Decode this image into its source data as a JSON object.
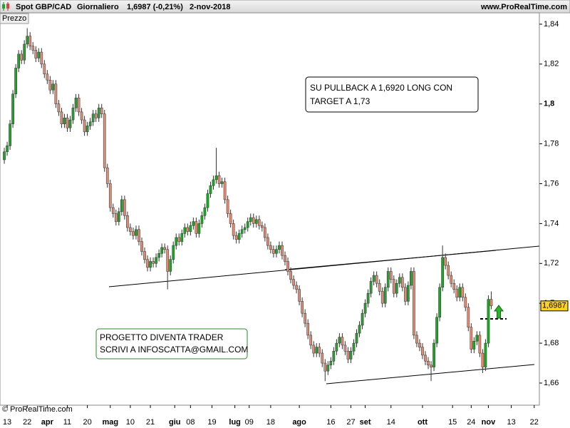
{
  "chart_data": {
    "type": "candlestick",
    "symbol": "Spot GBP/CAD",
    "period": "Giornaliero",
    "quote": "1,6987 (-0,21%)",
    "date": "2-nov-2018",
    "site": "www.ProRealTime.com",
    "pane": "Prezzo",
    "copyright": "© ProRealTime.com",
    "up_color": "#22a32a",
    "down_color": "#e08a74",
    "ylim": [
      1.6489,
      1.8457
    ],
    "yticks": [
      {
        "value": 1.84,
        "label": "1,84"
      },
      {
        "value": 1.82,
        "label": "1,82"
      },
      {
        "value": 1.8,
        "label": "1,8"
      },
      {
        "value": 1.78,
        "label": "1,78"
      },
      {
        "value": 1.76,
        "label": "1,76"
      },
      {
        "value": 1.74,
        "label": "1,74"
      },
      {
        "value": 1.72,
        "label": "1,72"
      },
      {
        "value": 1.7,
        "label": "1,7"
      },
      {
        "value": 1.68,
        "label": "1,68"
      },
      {
        "value": 1.66,
        "label": "1,66"
      }
    ],
    "xlim": [
      -1.5,
      186.8
    ],
    "xticks": [
      {
        "value": 1,
        "label": "13"
      },
      {
        "value": 8,
        "label": "22"
      },
      {
        "value": 15,
        "label": "apr"
      },
      {
        "value": 22,
        "label": "11"
      },
      {
        "value": 29,
        "label": "20"
      },
      {
        "value": 37,
        "label": "mag"
      },
      {
        "value": 44,
        "label": "10"
      },
      {
        "value": 51,
        "label": "21"
      },
      {
        "value": 59.5,
        "label": "giu"
      },
      {
        "value": 65,
        "label": "08"
      },
      {
        "value": 72.5,
        "label": "19"
      },
      {
        "value": 80.5,
        "label": "lug"
      },
      {
        "value": 85.5,
        "label": "09"
      },
      {
        "value": 93,
        "label": "18"
      },
      {
        "value": 103,
        "label": "ago"
      },
      {
        "value": 114,
        "label": "16"
      },
      {
        "value": 121,
        "label": "27"
      },
      {
        "value": 126,
        "label": "set"
      },
      {
        "value": 135,
        "label": "14"
      },
      {
        "value": 146,
        "label": "ott"
      },
      {
        "value": 156.5,
        "label": "15"
      },
      {
        "value": 163,
        "label": "24"
      },
      {
        "value": 169,
        "label": "nov"
      },
      {
        "value": 177,
        "label": "13"
      },
      {
        "value": 185,
        "label": "22"
      }
    ],
    "price_tag": {
      "value": 1.6987,
      "label": "1,6987"
    },
    "annotations": [
      [
        "SU PULLBACK A 1,6920 LONG CON",
        "TARGET A 1,73"
      ],
      [
        "PROGETTO DIVENTA TRADER",
        "SCRIVI A INFOSCATTA@GMAIL.COM"
      ]
    ],
    "open": [
      1.772,
      1.776,
      1.779,
      1.79,
      1.805,
      1.818,
      1.825,
      1.822,
      1.83,
      1.834,
      1.829,
      1.827,
      1.823,
      1.826,
      1.82,
      1.815,
      1.812,
      1.807,
      1.81,
      1.8,
      1.796,
      1.79,
      1.793,
      1.788,
      1.792,
      1.798,
      1.803,
      1.796,
      1.792,
      1.786,
      1.789,
      1.791,
      1.795,
      1.793,
      1.798,
      1.795,
      1.768,
      1.76,
      1.748,
      1.745,
      1.741,
      1.746,
      1.752,
      1.744,
      1.738,
      1.736,
      1.734,
      1.737,
      1.731,
      1.726,
      1.722,
      1.718,
      1.721,
      1.72,
      1.723,
      1.725,
      1.728,
      1.727,
      1.716,
      1.722,
      1.729,
      1.733,
      1.731,
      1.735,
      1.738,
      1.736,
      1.739,
      1.741,
      1.735,
      1.74,
      1.744,
      1.748,
      1.755,
      1.759,
      1.762,
      1.764,
      1.76,
      1.761,
      1.752,
      1.745,
      1.74,
      1.734,
      1.732,
      1.735,
      1.737,
      1.738,
      1.741,
      1.743,
      1.74,
      1.742,
      1.739,
      1.738,
      1.733,
      1.729,
      1.727,
      1.725,
      1.727,
      1.729,
      1.724,
      1.721,
      1.716,
      1.712,
      1.709,
      1.707,
      1.701,
      1.695,
      1.69,
      1.684,
      1.679,
      1.675,
      1.678,
      1.675,
      1.67,
      1.666,
      1.669,
      1.671,
      1.676,
      1.68,
      1.683,
      1.679,
      1.676,
      1.672,
      1.676,
      1.68,
      1.685,
      1.689,
      1.695,
      1.7,
      1.705,
      1.711,
      1.714,
      1.71,
      1.706,
      1.7,
      1.708,
      1.716,
      1.712,
      1.705,
      1.71,
      1.713,
      1.708,
      1.701,
      1.709,
      1.716,
      1.684,
      1.68,
      1.678,
      1.674,
      1.671,
      1.669,
      1.668,
      1.68,
      1.693,
      1.708,
      1.723,
      1.719,
      1.714,
      1.71,
      1.707,
      1.703,
      1.708,
      1.703,
      1.698,
      1.688,
      1.677,
      1.681,
      1.684,
      1.675,
      1.668,
      1.68,
      1.702
    ],
    "high": [
      1.778,
      1.781,
      1.792,
      1.807,
      1.82,
      1.827,
      1.827,
      1.832,
      1.838,
      1.836,
      1.831,
      1.829,
      1.828,
      1.828,
      1.822,
      1.817,
      1.814,
      1.812,
      1.812,
      1.802,
      1.798,
      1.795,
      1.795,
      1.794,
      1.8,
      1.805,
      1.805,
      1.798,
      1.794,
      1.791,
      1.793,
      1.797,
      1.797,
      1.8,
      1.8,
      1.797,
      1.77,
      1.762,
      1.75,
      1.747,
      1.748,
      1.754,
      1.754,
      1.746,
      1.74,
      1.738,
      1.739,
      1.739,
      1.733,
      1.728,
      1.724,
      1.723,
      1.723,
      1.725,
      1.727,
      1.73,
      1.73,
      1.729,
      1.724,
      1.731,
      1.735,
      1.735,
      1.737,
      1.74,
      1.74,
      1.741,
      1.743,
      1.743,
      1.742,
      1.746,
      1.75,
      1.757,
      1.761,
      1.764,
      1.778,
      1.766,
      1.763,
      1.763,
      1.754,
      1.747,
      1.742,
      1.736,
      1.737,
      1.739,
      1.74,
      1.743,
      1.745,
      1.745,
      1.744,
      1.744,
      1.741,
      1.74,
      1.735,
      1.731,
      1.729,
      1.729,
      1.731,
      1.731,
      1.726,
      1.723,
      1.718,
      1.714,
      1.711,
      1.709,
      1.703,
      1.697,
      1.692,
      1.686,
      1.681,
      1.68,
      1.68,
      1.677,
      1.672,
      1.671,
      1.673,
      1.678,
      1.682,
      1.685,
      1.685,
      1.681,
      1.678,
      1.678,
      1.682,
      1.687,
      1.691,
      1.697,
      1.702,
      1.707,
      1.713,
      1.716,
      1.716,
      1.712,
      1.708,
      1.71,
      1.718,
      1.718,
      1.714,
      1.712,
      1.715,
      1.715,
      1.71,
      1.711,
      1.718,
      1.718,
      1.686,
      1.682,
      1.68,
      1.676,
      1.673,
      1.671,
      1.682,
      1.695,
      1.71,
      1.729,
      1.725,
      1.721,
      1.716,
      1.712,
      1.709,
      1.71,
      1.71,
      1.705,
      1.7,
      1.69,
      1.683,
      1.686,
      1.686,
      1.677,
      1.682,
      1.704,
      1.706
    ],
    "low": [
      1.77,
      1.774,
      1.777,
      1.788,
      1.803,
      1.816,
      1.82,
      1.82,
      1.828,
      1.827,
      1.825,
      1.821,
      1.821,
      1.818,
      1.813,
      1.81,
      1.805,
      1.805,
      1.798,
      1.794,
      1.788,
      1.788,
      1.786,
      1.786,
      1.79,
      1.796,
      1.794,
      1.79,
      1.784,
      1.784,
      1.787,
      1.789,
      1.791,
      1.791,
      1.793,
      1.766,
      1.758,
      1.746,
      1.743,
      1.739,
      1.739,
      1.744,
      1.742,
      1.736,
      1.734,
      1.732,
      1.732,
      1.729,
      1.724,
      1.72,
      1.716,
      1.716,
      1.718,
      1.718,
      1.721,
      1.723,
      1.725,
      1.707,
      1.714,
      1.72,
      1.727,
      1.729,
      1.729,
      1.733,
      1.734,
      1.734,
      1.737,
      1.733,
      1.733,
      1.738,
      1.742,
      1.746,
      1.753,
      1.757,
      1.76,
      1.758,
      1.758,
      1.75,
      1.743,
      1.738,
      1.732,
      1.73,
      1.73,
      1.733,
      1.735,
      1.736,
      1.739,
      1.738,
      1.738,
      1.737,
      1.736,
      1.731,
      1.727,
      1.725,
      1.723,
      1.723,
      1.725,
      1.722,
      1.719,
      1.714,
      1.71,
      1.707,
      1.705,
      1.699,
      1.693,
      1.688,
      1.682,
      1.677,
      1.673,
      1.673,
      1.673,
      1.668,
      1.661,
      1.664,
      1.667,
      1.669,
      1.674,
      1.678,
      1.677,
      1.674,
      1.67,
      1.67,
      1.674,
      1.678,
      1.683,
      1.687,
      1.693,
      1.698,
      1.703,
      1.709,
      1.708,
      1.704,
      1.698,
      1.698,
      1.706,
      1.71,
      1.703,
      1.703,
      1.708,
      1.706,
      1.699,
      1.699,
      1.707,
      1.682,
      1.678,
      1.676,
      1.672,
      1.669,
      1.667,
      1.661,
      1.666,
      1.678,
      1.691,
      1.706,
      1.717,
      1.712,
      1.708,
      1.705,
      1.701,
      1.701,
      1.701,
      1.696,
      1.686,
      1.675,
      1.675,
      1.679,
      1.673,
      1.665,
      1.666,
      1.678,
      1.697
    ],
    "close": [
      1.776,
      1.779,
      1.79,
      1.805,
      1.818,
      1.825,
      1.822,
      1.83,
      1.834,
      1.829,
      1.827,
      1.823,
      1.826,
      1.82,
      1.815,
      1.812,
      1.807,
      1.81,
      1.8,
      1.796,
      1.79,
      1.793,
      1.788,
      1.792,
      1.798,
      1.803,
      1.796,
      1.792,
      1.786,
      1.789,
      1.791,
      1.795,
      1.793,
      1.798,
      1.795,
      1.768,
      1.76,
      1.748,
      1.745,
      1.741,
      1.746,
      1.752,
      1.744,
      1.738,
      1.736,
      1.734,
      1.737,
      1.731,
      1.726,
      1.722,
      1.718,
      1.721,
      1.72,
      1.723,
      1.725,
      1.728,
      1.727,
      1.716,
      1.722,
      1.729,
      1.733,
      1.731,
      1.735,
      1.738,
      1.736,
      1.739,
      1.741,
      1.735,
      1.74,
      1.744,
      1.748,
      1.755,
      1.759,
      1.762,
      1.764,
      1.76,
      1.761,
      1.752,
      1.745,
      1.74,
      1.734,
      1.732,
      1.735,
      1.737,
      1.738,
      1.741,
      1.743,
      1.74,
      1.742,
      1.739,
      1.738,
      1.733,
      1.729,
      1.727,
      1.725,
      1.727,
      1.729,
      1.724,
      1.721,
      1.716,
      1.712,
      1.709,
      1.707,
      1.701,
      1.695,
      1.69,
      1.684,
      1.679,
      1.675,
      1.678,
      1.675,
      1.67,
      1.666,
      1.669,
      1.671,
      1.676,
      1.68,
      1.683,
      1.679,
      1.676,
      1.672,
      1.676,
      1.68,
      1.685,
      1.689,
      1.695,
      1.7,
      1.705,
      1.711,
      1.714,
      1.71,
      1.706,
      1.7,
      1.708,
      1.716,
      1.712,
      1.705,
      1.71,
      1.713,
      1.708,
      1.701,
      1.709,
      1.716,
      1.684,
      1.68,
      1.678,
      1.674,
      1.671,
      1.669,
      1.668,
      1.68,
      1.693,
      1.708,
      1.723,
      1.719,
      1.714,
      1.71,
      1.707,
      1.703,
      1.708,
      1.703,
      1.698,
      1.688,
      1.677,
      1.681,
      1.684,
      1.675,
      1.668,
      1.68,
      1.702,
      1.6987
    ]
  }
}
